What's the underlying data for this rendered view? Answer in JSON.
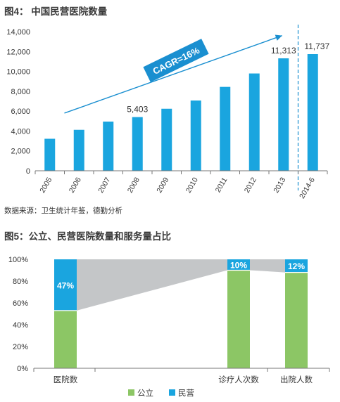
{
  "figure4": {
    "title": "图4： 中国民营医院数量",
    "source": "数据来源：卫生统计年鉴，德勤分析",
    "chart_data": {
      "type": "bar",
      "categories": [
        "2005",
        "2006",
        "2007",
        "2008",
        "2009",
        "2010",
        "2011",
        "2012",
        "2013",
        "2014-6"
      ],
      "values": [
        3220,
        4120,
        4950,
        5403,
        6240,
        7070,
        8440,
        9790,
        11313,
        11737
      ],
      "data_labels": [
        {
          "index": 3,
          "text": "5,403"
        },
        {
          "index": 8,
          "text": "11,313"
        },
        {
          "index": 9,
          "text": "11,737"
        }
      ],
      "yticks": [
        "0",
        "2,000",
        "4,000",
        "6,000",
        "8,000",
        "10,000",
        "12,000",
        "14,000"
      ],
      "ylim": [
        0,
        14000
      ],
      "annotation": "CAGR=16%",
      "bar_color": "#1aa5df",
      "trend_color": "#1a8fd0",
      "divider_color": "#1a8fd0"
    }
  },
  "figure5": {
    "title": "图5：公立、民营医院数量和服务量占比",
    "chart_data": {
      "type": "bar",
      "stacked": true,
      "categories": [
        "医院数",
        "诊疗人次数",
        "出院人数"
      ],
      "series": [
        {
          "name": "公立",
          "values": [
            53,
            90,
            88
          ],
          "color": "#8cc665"
        },
        {
          "name": "民营",
          "values": [
            47,
            10,
            12
          ],
          "color": "#1aa5df"
        }
      ],
      "data_labels": [
        "47%",
        "10%",
        "12%"
      ],
      "yticks": [
        "0%",
        "20%",
        "40%",
        "60%",
        "80%",
        "100%"
      ],
      "ylim": [
        0,
        100
      ],
      "connector_color": "#c4c6c8",
      "legend": [
        "公立",
        "民营"
      ],
      "legend_position": "bottom-center"
    }
  }
}
